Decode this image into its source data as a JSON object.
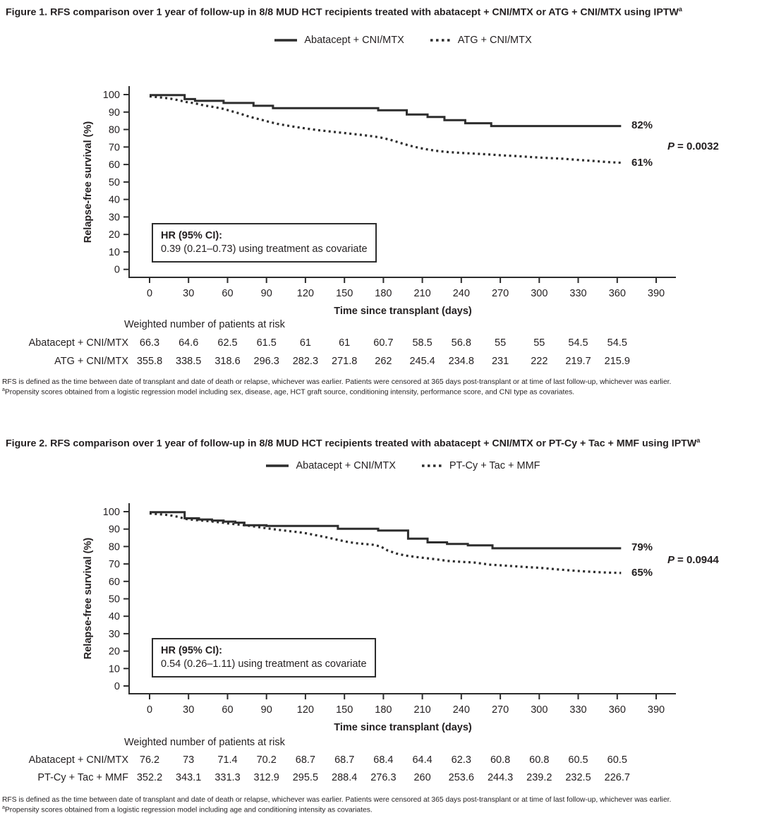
{
  "page": {
    "background": "#ffffff",
    "ink": "#231f20",
    "curve_color": "#2d2d2d"
  },
  "chart_data": [
    {
      "type": "line",
      "title": "Figure 1. RFS comparison over 1 year of follow-up in 8/8 MUD HCT recipients treated with abatacept + CNI/MTX or ATG + CNI/MTX using IPTW",
      "title_sup": "a",
      "xlabel": "Time since transplant (days)",
      "ylabel": "Relapse-free survival (%)",
      "xlim": [
        0,
        390
      ],
      "ylim": [
        0,
        100
      ],
      "x_ticks": [
        0,
        30,
        60,
        90,
        120,
        150,
        180,
        210,
        240,
        270,
        300,
        330,
        360,
        390
      ],
      "y_ticks": [
        0,
        10,
        20,
        30,
        40,
        50,
        60,
        70,
        80,
        90,
        100
      ],
      "grid": false,
      "legend_position": "top-center",
      "legend": [
        {
          "label": "Abatacept + CNI/MTX",
          "style": "solid"
        },
        {
          "label": "ATG + CNI/MTX",
          "style": "dotted"
        }
      ],
      "annotations": {
        "hr_title": "HR (95% CI):",
        "hr_value": "0.39 (0.21–0.73) using treatment as covariate",
        "p_italic": "P",
        "p_rest": "= 0.0032",
        "solid_end_label": "82%",
        "dotted_end_label": "61%"
      },
      "series": [
        {
          "name": "Abatacept + CNI/MTX",
          "style": "solid",
          "step": true,
          "points": [
            [
              0,
              99.7
            ],
            [
              27,
              99.7
            ],
            [
              27,
              97.4
            ],
            [
              35,
              97.4
            ],
            [
              35,
              96.4
            ],
            [
              57,
              96.4
            ],
            [
              57,
              95.2
            ],
            [
              80,
              95.2
            ],
            [
              80,
              93.6
            ],
            [
              95,
              93.6
            ],
            [
              95,
              92.2
            ],
            [
              176,
              92.2
            ],
            [
              176,
              91
            ],
            [
              198,
              91
            ],
            [
              198,
              88.6
            ],
            [
              214,
              88.6
            ],
            [
              214,
              87.2
            ],
            [
              227,
              87.2
            ],
            [
              227,
              85.4
            ],
            [
              243,
              85.4
            ],
            [
              243,
              83.6
            ],
            [
              263,
              83.6
            ],
            [
              263,
              82
            ],
            [
              363,
              82
            ]
          ]
        },
        {
          "name": "ATG + CNI/MTX",
          "style": "dotted",
          "step": false,
          "points": [
            [
              0,
              99
            ],
            [
              8,
              98.4
            ],
            [
              15,
              97.8
            ],
            [
              22,
              96.8
            ],
            [
              28,
              95.8
            ],
            [
              35,
              95
            ],
            [
              42,
              93.8
            ],
            [
              50,
              92.8
            ],
            [
              57,
              91.8
            ],
            [
              63,
              90.5
            ],
            [
              70,
              89
            ],
            [
              77,
              87.3
            ],
            [
              85,
              85.8
            ],
            [
              93,
              84.2
            ],
            [
              100,
              83
            ],
            [
              108,
              82
            ],
            [
              115,
              81.2
            ],
            [
              122,
              80.4
            ],
            [
              130,
              79.6
            ],
            [
              140,
              78.8
            ],
            [
              150,
              78
            ],
            [
              160,
              77.2
            ],
            [
              170,
              76.3
            ],
            [
              178,
              75.4
            ],
            [
              185,
              74.2
            ],
            [
              192,
              72.6
            ],
            [
              200,
              70.8
            ],
            [
              207,
              69.6
            ],
            [
              214,
              68.6
            ],
            [
              222,
              67.7
            ],
            [
              230,
              67.1
            ],
            [
              240,
              66.6
            ],
            [
              250,
              66.2
            ],
            [
              260,
              65.8
            ],
            [
              272,
              65.2
            ],
            [
              283,
              64.8
            ],
            [
              295,
              64.2
            ],
            [
              305,
              63.8
            ],
            [
              318,
              63.3
            ],
            [
              330,
              62.6
            ],
            [
              342,
              62
            ],
            [
              352,
              61.4
            ],
            [
              363,
              61
            ]
          ]
        }
      ],
      "at_risk": {
        "header": "Weighted number of patients at risk",
        "rows": [
          {
            "label": "Abatacept + CNI/MTX",
            "values": [
              66.3,
              64.6,
              62.5,
              61.5,
              61,
              61,
              60.7,
              58.5,
              56.8,
              55,
              55,
              54.5,
              54.5
            ]
          },
          {
            "label": "ATG + CNI/MTX",
            "values": [
              355.8,
              338.5,
              318.6,
              296.3,
              282.3,
              271.8,
              262,
              245.4,
              234.8,
              231,
              222,
              219.7,
              215.9
            ]
          }
        ]
      },
      "footnotes": {
        "line1": "RFS is defined as the time between date of transplant and date of death or relapse, whichever was earlier. Patients were censored at 365 days post-transplant or at time of last follow-up, whichever was earlier.",
        "line2_sup": "a",
        "line2": "Propensity scores obtained from a logistic regression model including sex, disease, age, HCT graft source, conditioning intensity, performance score, and CNI type as covariates."
      }
    },
    {
      "type": "line",
      "title": "Figure 2. RFS comparison over 1 year of follow-up in 8/8 MUD HCT recipients treated with abatacept + CNI/MTX or PT-Cy + Tac + MMF using IPTW",
      "title_sup": "a",
      "xlabel": "Time since transplant (days)",
      "ylabel": "Relapse-free survival (%)",
      "xlim": [
        0,
        390
      ],
      "ylim": [
        0,
        100
      ],
      "x_ticks": [
        0,
        30,
        60,
        90,
        120,
        150,
        180,
        210,
        240,
        270,
        300,
        330,
        360,
        390
      ],
      "y_ticks": [
        0,
        10,
        20,
        30,
        40,
        50,
        60,
        70,
        80,
        90,
        100
      ],
      "grid": false,
      "legend_position": "top-center",
      "legend": [
        {
          "label": "Abatacept + CNI/MTX",
          "style": "solid"
        },
        {
          "label": "PT-Cy + Tac + MMF",
          "style": "dotted"
        }
      ],
      "annotations": {
        "hr_title": "HR (95% CI):",
        "hr_value": "0.54 (0.26–1.11) using treatment as covariate",
        "p_italic": "P",
        "p_rest": "= 0.0944",
        "solid_end_label": "79%",
        "dotted_end_label": "65%"
      },
      "series": [
        {
          "name": "Abatacept + CNI/MTX",
          "style": "solid",
          "step": true,
          "points": [
            [
              0,
              99.7
            ],
            [
              27,
              99.7
            ],
            [
              27,
              96.2
            ],
            [
              38,
              96.2
            ],
            [
              38,
              95.5
            ],
            [
              48,
              95.5
            ],
            [
              48,
              94.9
            ],
            [
              57,
              94.9
            ],
            [
              57,
              94.3
            ],
            [
              66,
              94.3
            ],
            [
              66,
              93.7
            ],
            [
              73,
              93.7
            ],
            [
              73,
              92.2
            ],
            [
              90,
              92.2
            ],
            [
              90,
              91.8
            ],
            [
              145,
              91.8
            ],
            [
              145,
              90.2
            ],
            [
              176,
              90.2
            ],
            [
              176,
              89.2
            ],
            [
              199,
              89.2
            ],
            [
              199,
              84.5
            ],
            [
              214,
              84.5
            ],
            [
              214,
              82.4
            ],
            [
              229,
              82.4
            ],
            [
              229,
              81.5
            ],
            [
              245,
              81.5
            ],
            [
              245,
              80.7
            ],
            [
              264,
              80.7
            ],
            [
              264,
              79
            ],
            [
              363,
              79
            ]
          ]
        },
        {
          "name": "PT-Cy + Tac + MMF",
          "style": "dotted",
          "step": false,
          "points": [
            [
              0,
              99
            ],
            [
              8,
              98.5
            ],
            [
              15,
              98
            ],
            [
              22,
              97
            ],
            [
              28,
              95.8
            ],
            [
              35,
              95.2
            ],
            [
              42,
              94.8
            ],
            [
              50,
              94.2
            ],
            [
              57,
              93.6
            ],
            [
              63,
              93
            ],
            [
              70,
              92.5
            ],
            [
              78,
              91.8
            ],
            [
              85,
              91
            ],
            [
              92,
              90.3
            ],
            [
              100,
              89.5
            ],
            [
              108,
              88.8
            ],
            [
              115,
              88.2
            ],
            [
              122,
              87.4
            ],
            [
              130,
              86.2
            ],
            [
              138,
              85
            ],
            [
              145,
              83.8
            ],
            [
              152,
              82.7
            ],
            [
              158,
              82
            ],
            [
              165,
              81.5
            ],
            [
              172,
              81
            ],
            [
              178,
              80
            ],
            [
              183,
              77.8
            ],
            [
              190,
              76
            ],
            [
              197,
              74.8
            ],
            [
              205,
              74
            ],
            [
              213,
              73.3
            ],
            [
              222,
              72.5
            ],
            [
              230,
              71.7
            ],
            [
              240,
              71.2
            ],
            [
              250,
              70.8
            ],
            [
              262,
              69.6
            ],
            [
              275,
              69
            ],
            [
              290,
              68.2
            ],
            [
              300,
              67.8
            ],
            [
              312,
              67
            ],
            [
              322,
              66.4
            ],
            [
              335,
              65.7
            ],
            [
              348,
              65.2
            ],
            [
              363,
              64.8
            ]
          ]
        }
      ],
      "at_risk": {
        "header": "Weighted number of patients at risk",
        "rows": [
          {
            "label": "Abatacept + CNI/MTX",
            "values": [
              76.2,
              73,
              71.4,
              70.2,
              68.7,
              68.7,
              68.4,
              64.4,
              62.3,
              60.8,
              60.8,
              60.5,
              60.5
            ]
          },
          {
            "label": "PT-Cy + Tac + MMF",
            "values": [
              352.2,
              343.1,
              331.3,
              312.9,
              295.5,
              288.4,
              276.3,
              260,
              253.6,
              244.3,
              239.2,
              232.5,
              226.7
            ]
          }
        ]
      },
      "footnotes": {
        "line1": "RFS is defined as the time between date of transplant and date of death or relapse, whichever was earlier. Patients were censored at 365 days post-transplant or at time of last follow-up, whichever was earlier.",
        "line2_sup": "a",
        "line2": "Propensity scores obtained from a logistic regression model including age and conditioning intensity as covariates."
      }
    }
  ]
}
